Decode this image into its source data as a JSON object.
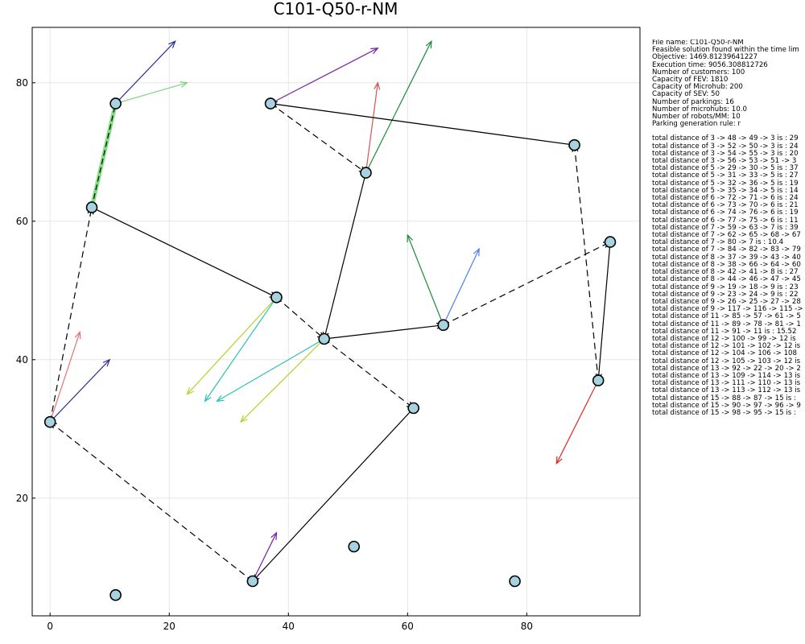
{
  "chart_data": {
    "type": "scatter",
    "title": "C101-Q50-r-NM",
    "x_ticks": [
      0,
      20,
      40,
      60,
      80
    ],
    "y_ticks": [
      20,
      40,
      60,
      80
    ],
    "xlim": [
      -3,
      99
    ],
    "ylim": [
      3,
      88
    ],
    "grid": true,
    "legend": "none",
    "parkings": [
      {
        "x": 0,
        "y": 31
      },
      {
        "x": 7,
        "y": 62
      },
      {
        "x": 11,
        "y": 77
      },
      {
        "x": 11,
        "y": 6
      },
      {
        "x": 37,
        "y": 77
      },
      {
        "x": 53,
        "y": 67
      },
      {
        "x": 88,
        "y": 71
      },
      {
        "x": 94,
        "y": 57
      },
      {
        "x": 38,
        "y": 49
      },
      {
        "x": 46,
        "y": 43
      },
      {
        "x": 66,
        "y": 45
      },
      {
        "x": 61,
        "y": 33
      },
      {
        "x": 34,
        "y": 8
      },
      {
        "x": 51,
        "y": 13
      },
      {
        "x": 78,
        "y": 8
      },
      {
        "x": 92,
        "y": 37
      }
    ],
    "fev_routes": [
      {
        "path": [
          [
            0,
            31
          ],
          [
            7,
            62
          ],
          [
            38,
            49
          ],
          [
            46,
            43
          ],
          [
            66,
            45
          ],
          [
            94,
            57
          ],
          [
            92,
            37
          ],
          [
            88,
            71
          ],
          [
            37,
            77
          ],
          [
            53,
            67
          ],
          [
            46,
            43
          ],
          [
            61,
            33
          ],
          [
            34,
            8
          ],
          [
            0,
            31
          ]
        ]
      }
    ],
    "microhub_links": [
      {
        "from": [
          7,
          62
        ],
        "to": [
          11,
          77
        ]
      }
    ],
    "sev_links": [
      {
        "from": [
          37,
          77
        ],
        "to": [
          55,
          85
        ],
        "color": "#7b1fa2"
      },
      {
        "from": [
          37,
          77
        ],
        "to": [
          88,
          71
        ],
        "color": "#7fd37f"
      },
      {
        "from": [
          53,
          67
        ],
        "to": [
          64,
          86
        ],
        "color": "#1b8a3a"
      },
      {
        "from": [
          53,
          67
        ],
        "to": [
          55,
          80
        ],
        "color": "#d9534f"
      },
      {
        "from": [
          38,
          49
        ],
        "to": [
          26,
          34
        ],
        "color": "#2bc4b0"
      },
      {
        "from": [
          38,
          49
        ],
        "to": [
          23,
          35
        ],
        "color": "#b8d12e"
      },
      {
        "from": [
          46,
          43
        ],
        "to": [
          28,
          34
        ],
        "color": "#2bc4b0"
      },
      {
        "from": [
          46,
          43
        ],
        "to": [
          32,
          31
        ],
        "color": "#b8d12e"
      },
      {
        "from": [
          66,
          45
        ],
        "to": [
          60,
          58
        ],
        "color": "#1b8a3a"
      },
      {
        "from": [
          66,
          45
        ],
        "to": [
          72,
          56
        ],
        "color": "#4e7fe0"
      },
      {
        "from": [
          34,
          8
        ],
        "to": [
          38,
          15
        ],
        "color": "#7b1fa2"
      },
      {
        "from": [
          92,
          37
        ],
        "to": [
          85,
          25
        ],
        "color": "#e32626"
      },
      {
        "from": [
          0,
          31
        ],
        "to": [
          10,
          40
        ],
        "color": "#2e2e9a"
      },
      {
        "from": [
          0,
          31
        ],
        "to": [
          5,
          44
        ],
        "color": "#e57373"
      },
      {
        "from": [
          11,
          77
        ],
        "to": [
          21,
          86
        ],
        "color": "#2e2e9a"
      },
      {
        "from": [
          11,
          77
        ],
        "to": [
          23,
          80
        ],
        "color": "#7fd37f"
      }
    ],
    "info_lines": [
      "File name: C101-Q50-r-NM",
      "Feasible solution found within the time lim",
      "Objective: 1469.81239641227",
      "Execution time: 9056.308812726",
      "Number of customers: 100",
      "Capacity of FEV: 1810",
      "Capacity of Microhub: 200",
      "Capacity of SEV: 50",
      "Number of parkings: 16",
      "Number of microhubs: 10.0",
      "Number of robots/MM: 10",
      "Parking generation rule: r",
      "",
      "total distance of 3 -> 48 -> 49 -> 3 is : 29",
      "total distance of 3 -> 52 -> 50 -> 3 is : 24",
      "total distance of 3 -> 54 -> 55 -> 3 is : 20",
      "total distance of 3 -> 56 -> 53 -> 51 -> 3",
      "total distance of 5 -> 29 -> 30 -> 5 is : 37",
      "total distance of 5 -> 31 -> 33 -> 5 is : 27",
      "total distance of 5 -> 32 -> 36 -> 5 is : 19",
      "total distance of 5 -> 35 -> 34 -> 5 is : 14",
      "total distance of 6 -> 72 -> 71 -> 6 is : 24",
      "total distance of 6 -> 73 -> 70 -> 6 is : 21",
      "total distance of 6 -> 74 -> 76 -> 6 is : 19",
      "total distance of 6 -> 77 -> 75 -> 6 is : 11",
      "total distance of 7 -> 59 -> 63 -> 7 is : 39",
      "total distance of 7 -> 62 -> 65 -> 68 -> 67",
      "total distance of 7 -> 80 -> 7 is : 10.4",
      "total distance of 7 -> 84 -> 82 -> 83 -> 79",
      "total distance of 8 -> 37 -> 39 -> 43 -> 40",
      "total distance of 8 -> 38 -> 66 -> 64 -> 60",
      "total distance of 8 -> 42 -> 41 -> 8 is : 27",
      "total distance of 8 -> 44 -> 46 -> 47 -> 45",
      "total distance of 9 -> 19 -> 18 -> 9 is : 23",
      "total distance of 9 -> 23 -> 24 -> 9 is : 22",
      "total distance of 9 -> 26 -> 25 -> 27 -> 28",
      "total distance of 9 -> 117 -> 116 -> 115 ->",
      "total distance of 11 -> 85 -> 57 -> 61 -> 5",
      "total distance of 11 -> 89 -> 78 -> 81 -> 1",
      "total distance of 11 -> 91 -> 11 is : 15.52",
      "total distance of 12 -> 100 -> 99 -> 12 is",
      "total distance of 12 -> 101 -> 102 -> 12 is",
      "total distance of 12 -> 104 -> 106 -> 108",
      "total distance of 12 -> 105 -> 103 -> 12 is",
      "total distance of 13 -> 92 -> 22 -> 20 -> 2",
      "total distance of 13 -> 109 -> 114 -> 13 is",
      "total distance of 13 -> 111 -> 110 -> 13 is",
      "total distance of 13 -> 113 -> 112 -> 13 is",
      "total distance of 15 -> 88 -> 87 -> 15 is :",
      "total distance of 15 -> 90 -> 97 -> 96 -> 9",
      "total distance of 15 -> 98 -> 95 -> 15 is :"
    ]
  }
}
